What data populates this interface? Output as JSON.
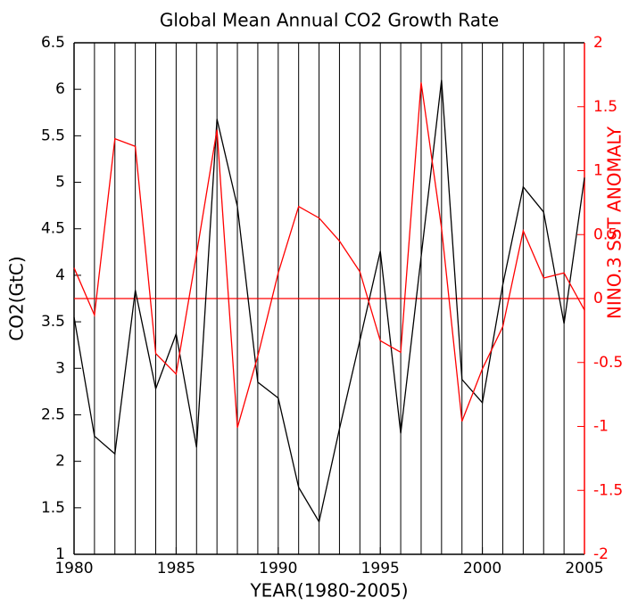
{
  "chart_data": {
    "type": "line",
    "title": "Global Mean Annual CO2 Growth Rate",
    "x_label": "YEAR(1980-2005)",
    "y_label": "CO2(GtC)",
    "y2_label": "NINO.3  SST ANOMALY",
    "x": [
      1980,
      1981,
      1982,
      1983,
      1984,
      1985,
      1986,
      1987,
      1988,
      1989,
      1990,
      1991,
      1992,
      1993,
      1994,
      1995,
      1996,
      1997,
      1998,
      1999,
      2000,
      2001,
      2002,
      2003,
      2004,
      2005
    ],
    "series": [
      {
        "color": "#000000",
        "axis": "y",
        "values": [
          3.55,
          2.27,
          2.08,
          3.84,
          2.78,
          3.37,
          2.15,
          5.68,
          4.74,
          2.85,
          2.68,
          1.72,
          1.35,
          2.35,
          3.3,
          4.26,
          2.3,
          4.2,
          6.1,
          2.88,
          2.63,
          3.9,
          4.95,
          4.68,
          3.48,
          5.05
        ]
      },
      {
        "color": "#ff0000",
        "axis": "y2",
        "values": [
          0.24,
          -0.13,
          1.25,
          1.19,
          -0.43,
          -0.59,
          0.35,
          1.32,
          -1.01,
          -0.45,
          0.2,
          0.72,
          0.63,
          0.45,
          0.21,
          -0.33,
          -0.42,
          1.69,
          0.55,
          -0.96,
          -0.55,
          -0.22,
          0.53,
          0.16,
          0.2,
          -0.09
        ]
      }
    ],
    "xlim": [
      1980,
      2005
    ],
    "xticks": [
      1980,
      1985,
      1990,
      1995,
      2000,
      2005
    ],
    "ylim": [
      1,
      6.5
    ],
    "yticks": [
      1,
      1.5,
      2,
      2.5,
      3,
      3.5,
      4,
      4.5,
      5,
      5.5,
      6,
      6.5
    ],
    "y2lim": [
      -2,
      2
    ],
    "y2ticks": [
      -2,
      -1.5,
      -1,
      -0.5,
      0,
      0.5,
      1,
      1.5,
      2
    ],
    "y2_color": "#ff0000",
    "hline": {
      "value": 0,
      "axis": "y2",
      "color": "#ff0000"
    },
    "grid": "x"
  }
}
